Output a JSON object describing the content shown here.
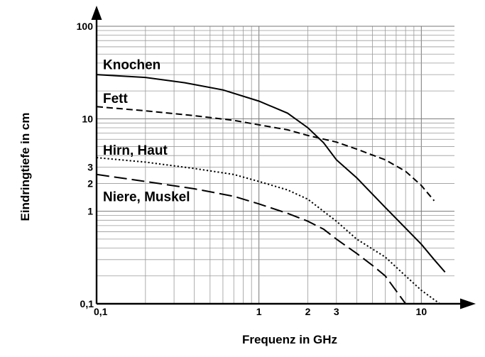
{
  "chart_data": {
    "type": "line",
    "title": "",
    "xlabel": "Frequenz in GHz",
    "ylabel": "Eindringtiefe in cm",
    "x_scale": "log",
    "y_scale": "log",
    "xlim": [
      0.1,
      16
    ],
    "ylim": [
      0.1,
      100
    ],
    "grid": true,
    "x_ticks": [
      {
        "value": 0.1,
        "label": "0,1"
      },
      {
        "value": 1,
        "label": "1"
      },
      {
        "value": 2,
        "label": "2"
      },
      {
        "value": 3,
        "label": "3"
      },
      {
        "value": 10,
        "label": "10"
      }
    ],
    "y_ticks": [
      {
        "value": 0.1,
        "label": "0,1"
      },
      {
        "value": 1,
        "label": "1"
      },
      {
        "value": 2,
        "label": "2"
      },
      {
        "value": 3,
        "label": "3"
      },
      {
        "value": 10,
        "label": "10"
      },
      {
        "value": 100,
        "label": "100"
      }
    ],
    "series": [
      {
        "name": "Knochen",
        "style": "solid",
        "x": [
          0.1,
          0.2,
          0.35,
          0.6,
          1,
          1.5,
          2,
          2.5,
          3,
          4,
          6,
          10,
          12,
          14
        ],
        "y": [
          30,
          28,
          24.5,
          20.5,
          15.5,
          11.5,
          8,
          5.5,
          3.6,
          2.3,
          1.1,
          0.44,
          0.3,
          0.22
        ]
      },
      {
        "name": "Fett",
        "style": "dashed",
        "x": [
          0.1,
          0.2,
          0.4,
          0.7,
          1,
          1.5,
          2,
          3,
          4,
          6,
          8,
          10,
          12
        ],
        "y": [
          13.5,
          12.2,
          10.8,
          9.6,
          8.6,
          7.6,
          6.6,
          5.6,
          4.7,
          3.6,
          2.7,
          1.9,
          1.3
        ]
      },
      {
        "name": "Hirn, Haut",
        "style": "dotted",
        "x": [
          0.1,
          0.2,
          0.4,
          0.7,
          1,
          1.5,
          2,
          3,
          4,
          6,
          8,
          10,
          13
        ],
        "y": [
          3.8,
          3.4,
          2.9,
          2.5,
          2.1,
          1.7,
          1.35,
          0.78,
          0.5,
          0.32,
          0.2,
          0.14,
          0.1
        ]
      },
      {
        "name": "Niere, Muskel",
        "style": "long-dash",
        "x": [
          0.1,
          0.2,
          0.4,
          0.7,
          1,
          1.5,
          2,
          2.5,
          3,
          4,
          5,
          6,
          8
        ],
        "y": [
          2.5,
          2.1,
          1.75,
          1.45,
          1.2,
          0.95,
          0.78,
          0.64,
          0.5,
          0.35,
          0.26,
          0.2,
          0.1
        ]
      }
    ]
  }
}
